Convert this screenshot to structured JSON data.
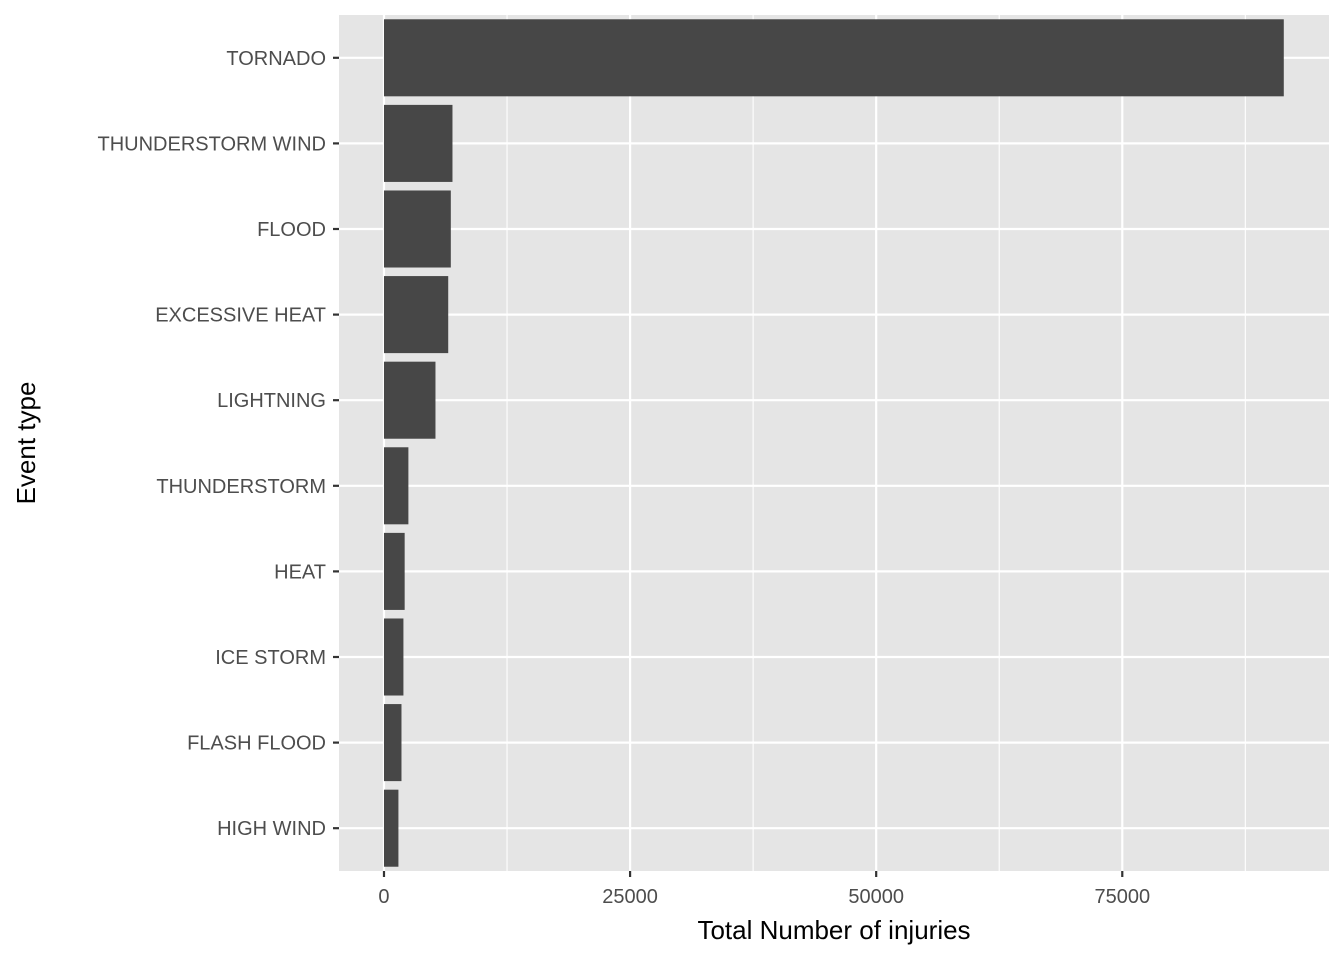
{
  "chart_data": {
    "type": "bar",
    "orientation": "horizontal",
    "xlabel": "Total Number of injuries",
    "ylabel": "Event type",
    "categories": [
      "TORNADO",
      "THUNDERSTORM WIND",
      "FLOOD",
      "EXCESSIVE HEAT",
      "LIGHTNING",
      "THUNDERSTORM",
      "HEAT",
      "ICE STORM",
      "FLASH FLOOD",
      "HIGH WIND"
    ],
    "values": [
      91407,
      6957,
      6789,
      6525,
      5230,
      2479,
      2100,
      1975,
      1777,
      1466
    ],
    "xlim": [
      -4570,
      96000
    ],
    "xticks": [
      0,
      25000,
      50000,
      75000
    ],
    "xtick_labels": [
      "0",
      "25000",
      "50000",
      "75000"
    ],
    "grid": true,
    "legend": "none",
    "colors": {
      "bar": "#474747",
      "panel": "#e5e5e5",
      "grid": "#ffffff",
      "tick": "#333333"
    }
  }
}
